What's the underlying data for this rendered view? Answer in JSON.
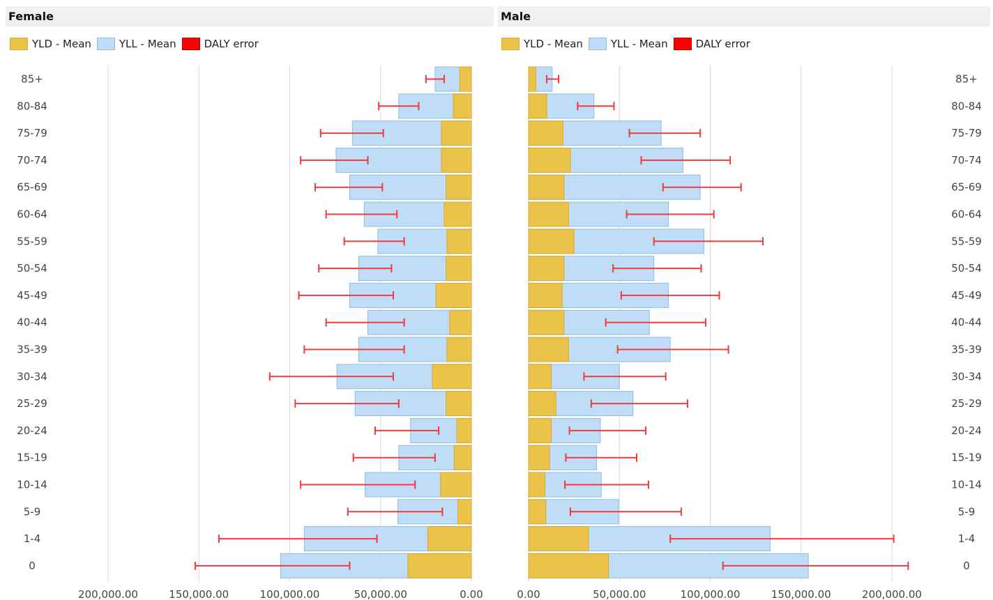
{
  "panels": {
    "female": {
      "title": "Female"
    },
    "male": {
      "title": "Male"
    }
  },
  "legend": [
    {
      "label": "YLD - Mean",
      "color": "#EBC24A",
      "border": "#D6A930"
    },
    {
      "label": "YLL - Mean",
      "color": "#BFDDF7",
      "border": "#8DBCE6"
    },
    {
      "label": "DALY error",
      "color": "#FF0000",
      "border": "#B00000"
    }
  ],
  "chart_data": [
    {
      "type": "bar",
      "panel": "Female",
      "orientation": "horizontal",
      "direction": "right-to-left",
      "stacked": true,
      "categories": [
        "85+",
        "80-84",
        "75-79",
        "70-74",
        "65-69",
        "60-64",
        "55-59",
        "50-54",
        "45-49",
        "40-44",
        "35-39",
        "30-34",
        "25-29",
        "20-24",
        "15-19",
        "10-14",
        "5-9",
        "1-4",
        "0"
      ],
      "series": [
        {
          "name": "YLD - Mean",
          "values": [
            6500,
            10000,
            16500,
            16500,
            14000,
            15000,
            13500,
            14000,
            19500,
            12000,
            13500,
            21500,
            14000,
            8000,
            9500,
            17000,
            7500,
            24000,
            35000
          ]
        },
        {
          "name": "YLL - Mean",
          "values": [
            13500,
            30000,
            49000,
            58000,
            53000,
            44000,
            38000,
            48000,
            47500,
            45000,
            48500,
            52500,
            50000,
            25500,
            30500,
            41500,
            33000,
            68000,
            70000
          ]
        }
      ],
      "error": {
        "name": "DALY error",
        "low": [
          15000,
          29000,
          48500,
          57000,
          49000,
          41000,
          37000,
          44000,
          43000,
          37000,
          37000,
          43000,
          40000,
          18000,
          20000,
          31000,
          16000,
          52000,
          67000
        ],
        "high": [
          25000,
          51000,
          83000,
          94000,
          86000,
          80000,
          70000,
          84000,
          95000,
          80000,
          92000,
          111000,
          97000,
          53000,
          65000,
          94000,
          68000,
          139000,
          152000
        ]
      },
      "xlim": [
        0,
        210000
      ],
      "tick_values": [
        200000,
        150000,
        100000,
        50000,
        0
      ],
      "tick_labels": [
        "200,000.00",
        "150,000.00",
        "100,000.00",
        "50,000.00",
        "0.00"
      ],
      "ylabel_position": "left"
    },
    {
      "type": "bar",
      "panel": "Male",
      "orientation": "horizontal",
      "direction": "left-to-right",
      "stacked": true,
      "categories": [
        "85+",
        "80-84",
        "75-79",
        "70-74",
        "65-69",
        "60-64",
        "55-59",
        "50-54",
        "45-49",
        "40-44",
        "35-39",
        "30-34",
        "25-29",
        "20-24",
        "15-19",
        "10-14",
        "5-9",
        "1-4",
        "0"
      ],
      "series": [
        {
          "name": "YLD - Mean",
          "values": [
            4000,
            10000,
            19000,
            23000,
            19500,
            22000,
            25000,
            19500,
            18500,
            19500,
            22000,
            12500,
            15000,
            12500,
            11500,
            9000,
            9500,
            33000,
            44000
          ]
        },
        {
          "name": "YLL - Mean",
          "values": [
            9000,
            26000,
            54000,
            62000,
            75000,
            55000,
            71500,
            49500,
            58500,
            47000,
            56000,
            37500,
            42500,
            27000,
            26000,
            31000,
            40000,
            100000,
            110000
          ]
        },
        {
          "name": "DALY error"
        }
      ],
      "error": {
        "name": "DALY error",
        "low": [
          10000,
          27000,
          55500,
          62000,
          74000,
          54000,
          69000,
          46500,
          51000,
          42500,
          49000,
          30500,
          34500,
          22500,
          20500,
          20000,
          23000,
          78000,
          107000
        ],
        "high": [
          16500,
          47000,
          94500,
          111000,
          117000,
          102000,
          129000,
          95000,
          105000,
          97500,
          110000,
          75500,
          87500,
          64500,
          59500,
          66000,
          84000,
          201000,
          209000
        ]
      },
      "xlim": [
        0,
        210000
      ],
      "tick_values": [
        0,
        50000,
        100000,
        150000,
        200000
      ],
      "tick_labels": [
        "0.00",
        "50,000.00",
        "100,000.00",
        "150,000.00",
        "200,000.00"
      ],
      "ylabel_position": "right"
    }
  ]
}
